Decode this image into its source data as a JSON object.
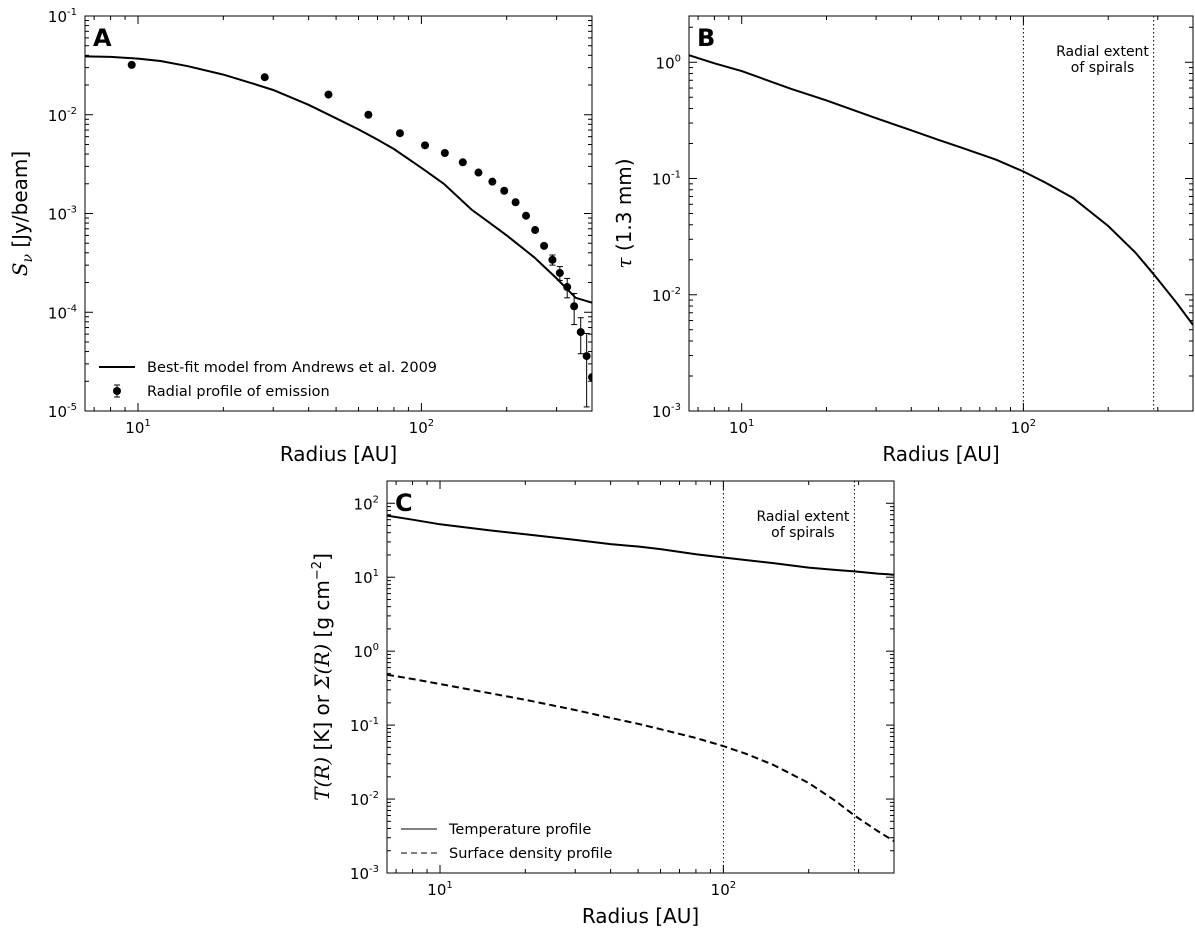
{
  "chart_data": [
    {
      "panel": "A",
      "type": "line+scatter",
      "xlabel": "Radius [AU]",
      "ylabel": "S_ν [Jy/beam]",
      "ylabel_parts": {
        "sym": "S",
        "sub": "ν",
        "unit": " [Jy/beam]"
      },
      "xscale": "log",
      "yscale": "log",
      "xlim": [
        6.5,
        400
      ],
      "ylim": [
        1e-05,
        0.1
      ],
      "x_ticks": [
        {
          "v": 10,
          "base": "10",
          "exp": "1"
        },
        {
          "v": 100,
          "base": "10",
          "exp": "2"
        }
      ],
      "y_ticks": [
        {
          "v": 1e-05,
          "base": "10",
          "exp": "-5"
        },
        {
          "v": 0.0001,
          "base": "10",
          "exp": "-4"
        },
        {
          "v": 0.001,
          "base": "10",
          "exp": "-3"
        },
        {
          "v": 0.01,
          "base": "10",
          "exp": "-2"
        },
        {
          "v": 0.1,
          "base": "10",
          "exp": "-1"
        }
      ],
      "legend": {
        "placement": "bottom-left",
        "entries": [
          "Best-fit model from Andrews et al. 2009",
          "Radial profile of emission"
        ]
      },
      "series": [
        {
          "name": "Best-fit model from Andrews et al. 2009",
          "style": "solid",
          "x": [
            6.5,
            8,
            10,
            12,
            15,
            20,
            25,
            30,
            40,
            50,
            60,
            70,
            80,
            100,
            120,
            150,
            180,
            200,
            250,
            300,
            350,
            400
          ],
          "y": [
            0.039,
            0.0385,
            0.037,
            0.035,
            0.031,
            0.0255,
            0.021,
            0.0178,
            0.0126,
            0.0092,
            0.0071,
            0.0056,
            0.0045,
            0.0029,
            0.002,
            0.0011,
            0.00075,
            0.0006,
            0.00036,
            0.00022,
            0.00014,
            0.000125
          ]
        },
        {
          "name": "Radial profile of emission",
          "style": "points",
          "x": [
            9.5,
            28,
            47,
            65,
            84,
            103,
            121,
            140,
            159,
            178,
            196,
            215,
            234,
            252,
            271,
            290,
            308,
            327,
            346,
            365,
            383,
            400
          ],
          "y": [
            0.032,
            0.024,
            0.016,
            0.01,
            0.0065,
            0.0049,
            0.0041,
            0.0033,
            0.0026,
            0.0021,
            0.0017,
            0.0013,
            0.00095,
            0.00068,
            0.00047,
            0.00034,
            0.00025,
            0.00018,
            0.000115,
            6.3e-05,
            3.6e-05,
            2.2e-05
          ],
          "yerr_lo": [
            0,
            0,
            0,
            0,
            0,
            0,
            0,
            0,
            0,
            0,
            0,
            0,
            0,
            0,
            0,
            4e-05,
            4e-05,
            4e-05,
            4e-05,
            2.5e-05,
            2.5e-05,
            0
          ],
          "yerr_hi": [
            0,
            0,
            0,
            0,
            0,
            0,
            0,
            0,
            0,
            0,
            0,
            0,
            0,
            0,
            0,
            4e-05,
            4e-05,
            4e-05,
            4e-05,
            2.5e-05,
            2.5e-05,
            0
          ]
        }
      ]
    },
    {
      "panel": "B",
      "type": "line",
      "xlabel": "Radius [AU]",
      "ylabel": "τ (1.3 mm)",
      "ylabel_parts": {
        "sym": "τ",
        "unit": " (1.3 mm)"
      },
      "xscale": "log",
      "yscale": "log",
      "xlim": [
        6.5,
        400
      ],
      "ylim": [
        0.001,
        2.5
      ],
      "x_ticks": [
        {
          "v": 10,
          "base": "10",
          "exp": "1"
        },
        {
          "v": 100,
          "base": "10",
          "exp": "2"
        }
      ],
      "y_ticks": [
        {
          "v": 0.001,
          "base": "10",
          "exp": "-3"
        },
        {
          "v": 0.01,
          "base": "10",
          "exp": "-2"
        },
        {
          "v": 0.1,
          "base": "10",
          "exp": "-1"
        },
        {
          "v": 1,
          "base": "10",
          "exp": "0"
        }
      ],
      "vlines": [
        100,
        290
      ],
      "annotation": {
        "lines": [
          "Radial extent",
          "of spirals"
        ]
      },
      "series": [
        {
          "style": "solid",
          "x": [
            6.5,
            8,
            10,
            15,
            20,
            30,
            40,
            50,
            60,
            80,
            100,
            120,
            150,
            200,
            250,
            290,
            350,
            400
          ],
          "y": [
            1.15,
            0.98,
            0.84,
            0.59,
            0.47,
            0.33,
            0.26,
            0.215,
            0.185,
            0.145,
            0.115,
            0.092,
            0.068,
            0.039,
            0.023,
            0.015,
            0.0085,
            0.0055
          ]
        }
      ]
    },
    {
      "panel": "C",
      "type": "line",
      "xlabel": "Radius [AU]",
      "ylabel": "T(R) [K]  or  Σ(R) [g cm⁻²]",
      "ylabel_parts": {
        "t": "T",
        "r1": "(R)",
        "k": " [K]  or  ",
        "sig": "Σ",
        "r2": "(R)",
        "unit": " [g cm",
        "exp": "−2",
        "close": "]"
      },
      "xscale": "log",
      "yscale": "log",
      "xlim": [
        6.5,
        400
      ],
      "ylim": [
        0.001,
        200
      ],
      "x_ticks": [
        {
          "v": 10,
          "base": "10",
          "exp": "1"
        },
        {
          "v": 100,
          "base": "10",
          "exp": "2"
        }
      ],
      "y_ticks": [
        {
          "v": 0.001,
          "base": "10",
          "exp": "-3"
        },
        {
          "v": 0.01,
          "base": "10",
          "exp": "-2"
        },
        {
          "v": 0.1,
          "base": "10",
          "exp": "-1"
        },
        {
          "v": 1,
          "base": "10",
          "exp": "0"
        },
        {
          "v": 10,
          "base": "10",
          "exp": "1"
        },
        {
          "v": 100,
          "base": "10",
          "exp": "2"
        }
      ],
      "vlines": [
        100,
        290
      ],
      "annotation": {
        "lines": [
          "Radial extent",
          "of spirals"
        ]
      },
      "legend": {
        "placement": "bottom-left",
        "entries": [
          "Temperature profile",
          "Surface density profile"
        ]
      },
      "series": [
        {
          "name": "Temperature profile",
          "style": "solid",
          "x": [
            6.5,
            8,
            10,
            15,
            20,
            30,
            40,
            50,
            60,
            80,
            100,
            150,
            200,
            250,
            290,
            350,
            400
          ],
          "y": [
            68,
            60,
            52,
            43,
            38,
            32,
            28,
            26,
            24,
            20.5,
            18.5,
            15.5,
            13.5,
            12.5,
            12,
            11.2,
            10.8
          ]
        },
        {
          "name": "Surface density profile",
          "style": "dashed",
          "x": [
            6.5,
            8,
            10,
            15,
            20,
            30,
            40,
            50,
            60,
            80,
            100,
            120,
            150,
            200,
            250,
            290,
            350,
            400
          ],
          "y": [
            0.48,
            0.42,
            0.36,
            0.27,
            0.22,
            0.16,
            0.125,
            0.104,
            0.088,
            0.067,
            0.052,
            0.041,
            0.029,
            0.0165,
            0.0093,
            0.006,
            0.0037,
            0.0027
          ]
        }
      ]
    }
  ]
}
